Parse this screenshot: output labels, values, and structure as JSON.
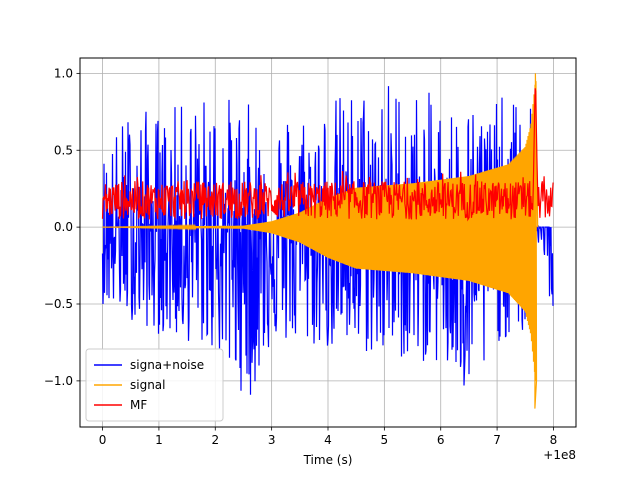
{
  "chart_data": {
    "type": "line",
    "title": "",
    "xlabel": "Time (s)",
    "ylabel": "",
    "xlim": [
      -0.4,
      8.4
    ],
    "ylim": [
      -1.3,
      1.1
    ],
    "grid": true,
    "x_offset_label": "+1e8",
    "x_ticks": [
      0,
      1,
      2,
      3,
      4,
      5,
      6,
      7,
      8
    ],
    "x_tick_labels": [
      "0",
      "1",
      "2",
      "3",
      "4",
      "5",
      "6",
      "7",
      "8"
    ],
    "y_ticks": [
      -1.0,
      -0.5,
      0.0,
      0.5,
      1.0
    ],
    "y_tick_labels": [
      "−1.0",
      "−0.5",
      "0.0",
      "0.5",
      "1.0"
    ],
    "legend_position": "lower-left",
    "series": [
      {
        "name": "signa+noise",
        "color": "#0000ff",
        "description": "noisy series spanning x 0 to 8; upper excursions up to ~1.0, lower down to ~-1.2; positive part drops to 0 after x~7.65",
        "x_range": [
          0,
          8
        ],
        "upper_envelope": [
          [
            0,
            0.5
          ],
          [
            0.5,
            0.8
          ],
          [
            1,
            0.75
          ],
          [
            2,
            0.9
          ],
          [
            3,
            0.75
          ],
          [
            4,
            0.85
          ],
          [
            5,
            1.0
          ],
          [
            6,
            0.85
          ],
          [
            7,
            0.85
          ],
          [
            7.6,
            0.85
          ],
          [
            7.65,
            0.0
          ],
          [
            8,
            0.0
          ]
        ],
        "lower_envelope": [
          [
            0,
            -0.5
          ],
          [
            1,
            -0.7
          ],
          [
            2,
            -0.8
          ],
          [
            2.6,
            -1.15
          ],
          [
            3,
            -0.75
          ],
          [
            4,
            -0.8
          ],
          [
            5,
            -0.85
          ],
          [
            6,
            -0.9
          ],
          [
            6.55,
            -1.2
          ],
          [
            7,
            -0.75
          ],
          [
            7.6,
            -0.7
          ],
          [
            7.7,
            -0.05
          ],
          [
            8,
            -0.6
          ]
        ]
      },
      {
        "name": "signal",
        "color": "#ffa500",
        "description": "chirp signal with growing amplitude from x 0 to ~7.7, peaking at 1.0 / -1.18 near x=7.68",
        "x_range": [
          0,
          7.7
        ],
        "amplitude_envelope": [
          [
            0,
            0.0
          ],
          [
            2.5,
            0.01
          ],
          [
            3.0,
            0.04
          ],
          [
            3.5,
            0.1
          ],
          [
            4.0,
            0.2
          ],
          [
            4.5,
            0.27
          ],
          [
            5.5,
            0.3
          ],
          [
            6.5,
            0.35
          ],
          [
            7.2,
            0.43
          ],
          [
            7.5,
            0.55
          ],
          [
            7.6,
            0.7
          ],
          [
            7.68,
            1.0
          ]
        ],
        "peak": [
          7.68,
          1.0
        ],
        "trough": [
          7.67,
          -1.18
        ]
      },
      {
        "name": "MF",
        "color": "#ff0000",
        "description": "matched-filter output: noisy band roughly 0.0 to 0.3 across x 0 to 8, sharp peak of 1.0 at x~7.68",
        "x_range": [
          0,
          8
        ],
        "band": [
          0.0,
          0.3
        ],
        "peak": [
          7.68,
          1.0
        ]
      }
    ]
  }
}
